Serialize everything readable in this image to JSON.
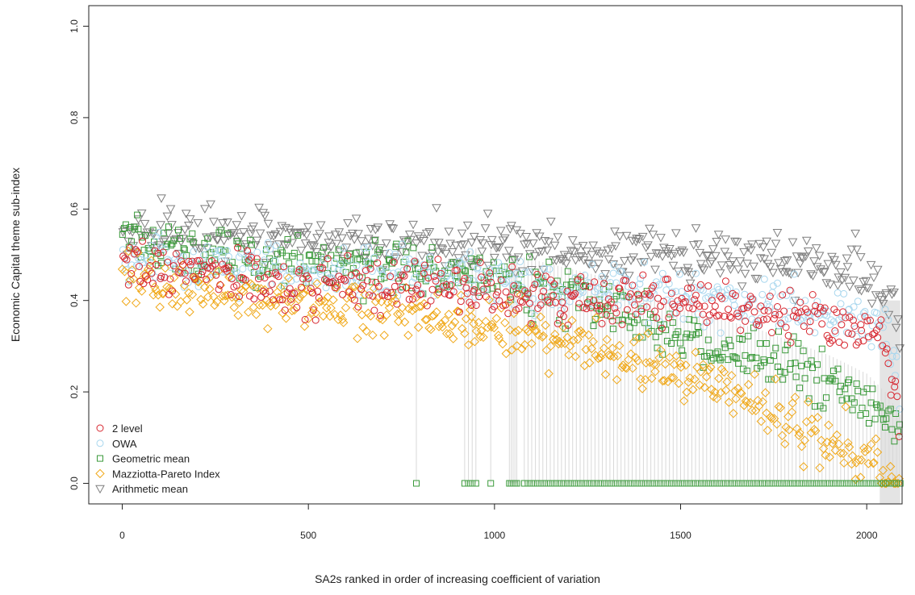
{
  "chart_data": {
    "type": "scatter",
    "title": "",
    "xlabel": "SA2s ranked in order of increasing coefficient of variation",
    "ylabel": "Economic Capital theme sub-index",
    "xlim": [
      -90,
      2095
    ],
    "ylim": [
      -0.045,
      1.045
    ],
    "x_ticks": [
      0,
      500,
      1000,
      1500,
      2000
    ],
    "y_ticks": [
      0.0,
      0.2,
      0.4,
      0.6,
      0.8,
      1.0
    ],
    "x_tick_labels": [
      "0",
      "500",
      "1000",
      "1500",
      "2000"
    ],
    "y_tick_labels": [
      "0.0",
      "0.2",
      "0.4",
      "0.6",
      "0.8",
      "1.0"
    ],
    "grid": false,
    "legend_position": "bottom-left",
    "n_points": 2090,
    "series": [
      {
        "name": "2 level",
        "marker": "circle",
        "color": "#d7262f",
        "trend": [
          [
            0,
            0.49
          ],
          [
            200,
            0.46
          ],
          [
            500,
            0.44
          ],
          [
            1000,
            0.42
          ],
          [
            1500,
            0.39
          ],
          [
            1800,
            0.37
          ],
          [
            2000,
            0.34
          ],
          [
            2045,
            0.3
          ],
          [
            2070,
            0.22
          ],
          [
            2090,
            0.11
          ]
        ]
      },
      {
        "name": "OWA",
        "marker": "circle",
        "color": "#a9d7ee",
        "trend": [
          [
            0,
            0.5
          ],
          [
            200,
            0.48
          ],
          [
            500,
            0.46
          ],
          [
            1000,
            0.44
          ],
          [
            1500,
            0.41
          ],
          [
            1800,
            0.39
          ],
          [
            2000,
            0.36
          ],
          [
            2045,
            0.33
          ],
          [
            2070,
            0.27
          ],
          [
            2090,
            0.19
          ]
        ]
      },
      {
        "name": "Geometric mean",
        "marker": "square",
        "color": "#3a9a3a",
        "trend": [
          [
            0,
            0.53
          ],
          [
            200,
            0.51
          ],
          [
            500,
            0.49
          ],
          [
            1000,
            0.45
          ],
          [
            1300,
            0.39
          ],
          [
            1500,
            0.32
          ],
          [
            1700,
            0.28
          ],
          [
            1900,
            0.22
          ],
          [
            2000,
            0.18
          ],
          [
            2050,
            0.14
          ],
          [
            2090,
            0.09
          ]
        ]
      },
      {
        "name": "Mazziotta-Pareto Index",
        "marker": "diamond",
        "color": "#f0a818",
        "trend": [
          [
            0,
            0.45
          ],
          [
            200,
            0.42
          ],
          [
            500,
            0.4
          ],
          [
            800,
            0.37
          ],
          [
            1000,
            0.34
          ],
          [
            1200,
            0.31
          ],
          [
            1400,
            0.26
          ],
          [
            1600,
            0.21
          ],
          [
            1800,
            0.14
          ],
          [
            1950,
            0.08
          ],
          [
            2000,
            0.05
          ],
          [
            2030,
            0.01
          ]
        ]
      },
      {
        "name": "Arithmetic mean",
        "marker": "triangle-down",
        "color": "#7f7f7f",
        "trend": [
          [
            0,
            0.55
          ],
          [
            200,
            0.54
          ],
          [
            500,
            0.53
          ],
          [
            1000,
            0.52
          ],
          [
            1500,
            0.5
          ],
          [
            1800,
            0.48
          ],
          [
            2000,
            0.46
          ],
          [
            2060,
            0.42
          ],
          [
            2090,
            0.3
          ]
        ]
      }
    ],
    "zero_geometric_mean_x": [
      790,
      920,
      930,
      940,
      950,
      990,
      1040,
      1045,
      1050,
      1055,
      1060,
      1080,
      1090,
      1100,
      1110,
      1120,
      1130,
      1140,
      1150,
      1160,
      1170,
      1180,
      1190,
      1200,
      1210,
      1220,
      1230,
      1240,
      1250,
      1260,
      1270,
      1280,
      1290,
      1300,
      1310,
      1320,
      1330,
      1340,
      1350,
      1360,
      1370,
      1380,
      1390,
      1400,
      1410,
      1420,
      1430,
      1440,
      1450,
      1460,
      1470,
      1480,
      1490,
      1500,
      1510,
      1520,
      1530,
      1540,
      1550,
      1560,
      1570,
      1580,
      1590,
      1600,
      1610,
      1620,
      1630,
      1640,
      1650,
      1660,
      1670,
      1680,
      1690,
      1700,
      1710,
      1720,
      1730,
      1740,
      1750,
      1760,
      1770,
      1780,
      1790,
      1800,
      1810,
      1820,
      1830,
      1840,
      1850,
      1860,
      1870,
      1880,
      1890,
      1900,
      1910,
      1920,
      1930,
      1940,
      1950,
      1960,
      1970,
      1980,
      1990,
      2000,
      2010,
      2020,
      2030,
      2040,
      2050,
      2060,
      2070,
      2080,
      2090
    ]
  }
}
